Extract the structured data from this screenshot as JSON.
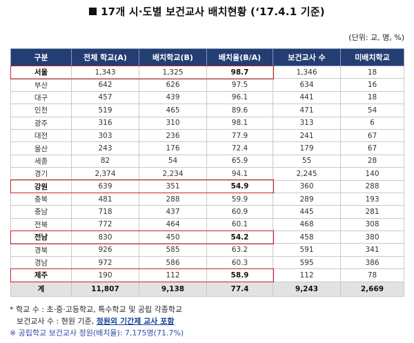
{
  "title": "17개 시·도별 보건교사 배치현황 (‘17.4.1 기준)",
  "unit_note": "(단위: 교, 명, %)",
  "columns": [
    "구분",
    "전체 학교(A)",
    "배치학교(B)",
    "배치율(B/A)",
    "보건교사 수",
    "미배치학교"
  ],
  "rows": [
    {
      "region": "서울",
      "total": "1,343",
      "placed": "1,325",
      "rate": "98.7",
      "teachers": "1,346",
      "unplaced": "18",
      "highlight": true
    },
    {
      "region": "부산",
      "total": "642",
      "placed": "626",
      "rate": "97.5",
      "teachers": "634",
      "unplaced": "16",
      "highlight": false
    },
    {
      "region": "대구",
      "total": "457",
      "placed": "439",
      "rate": "96.1",
      "teachers": "441",
      "unplaced": "18",
      "highlight": false
    },
    {
      "region": "인천",
      "total": "519",
      "placed": "465",
      "rate": "89.6",
      "teachers": "471",
      "unplaced": "54",
      "highlight": false
    },
    {
      "region": "광주",
      "total": "316",
      "placed": "310",
      "rate": "98.1",
      "teachers": "313",
      "unplaced": "6",
      "highlight": false
    },
    {
      "region": "대전",
      "total": "303",
      "placed": "236",
      "rate": "77.9",
      "teachers": "241",
      "unplaced": "67",
      "highlight": false
    },
    {
      "region": "울산",
      "total": "243",
      "placed": "176",
      "rate": "72.4",
      "teachers": "179",
      "unplaced": "67",
      "highlight": false
    },
    {
      "region": "세종",
      "total": "82",
      "placed": "54",
      "rate": "65.9",
      "teachers": "55",
      "unplaced": "28",
      "highlight": false
    },
    {
      "region": "경기",
      "total": "2,374",
      "placed": "2,234",
      "rate": "94.1",
      "teachers": "2,245",
      "unplaced": "140",
      "highlight": false
    },
    {
      "region": "강원",
      "total": "639",
      "placed": "351",
      "rate": "54.9",
      "teachers": "360",
      "unplaced": "288",
      "highlight": true
    },
    {
      "region": "충북",
      "total": "481",
      "placed": "288",
      "rate": "59.9",
      "teachers": "289",
      "unplaced": "193",
      "highlight": false
    },
    {
      "region": "충남",
      "total": "718",
      "placed": "437",
      "rate": "60.9",
      "teachers": "445",
      "unplaced": "281",
      "highlight": false
    },
    {
      "region": "전북",
      "total": "772",
      "placed": "464",
      "rate": "60.1",
      "teachers": "468",
      "unplaced": "308",
      "highlight": false
    },
    {
      "region": "전남",
      "total": "830",
      "placed": "450",
      "rate": "54.2",
      "teachers": "458",
      "unplaced": "380",
      "highlight": true
    },
    {
      "region": "경북",
      "total": "926",
      "placed": "585",
      "rate": "63.2",
      "teachers": "591",
      "unplaced": "341",
      "highlight": false
    },
    {
      "region": "경남",
      "total": "972",
      "placed": "586",
      "rate": "60.3",
      "teachers": "595",
      "unplaced": "386",
      "highlight": false
    },
    {
      "region": "제주",
      "total": "190",
      "placed": "112",
      "rate": "58.9",
      "teachers": "112",
      "unplaced": "78",
      "highlight": true
    }
  ],
  "total_row": {
    "region": "계",
    "total": "11,807",
    "placed": "9,138",
    "rate": "77.4",
    "teachers": "9,243",
    "unplaced": "2,669"
  },
  "notes": {
    "line1": "* 학교 수 : 초·중·고등학교, 특수학교 및 공립 각종학교",
    "line2_prefix": "보건교사 수 : 현원 기준, ",
    "line2_emph": "정원외 기간제 교사 포함",
    "line3": "※ 공립학교 보건교사 정원(배치율): 7,175명(71.7%)"
  },
  "colors": {
    "header_bg": "#233e73",
    "highlight_border": "#c8202a",
    "total_bg": "#e2e2e2",
    "note_blue": "#1a3e9a"
  }
}
